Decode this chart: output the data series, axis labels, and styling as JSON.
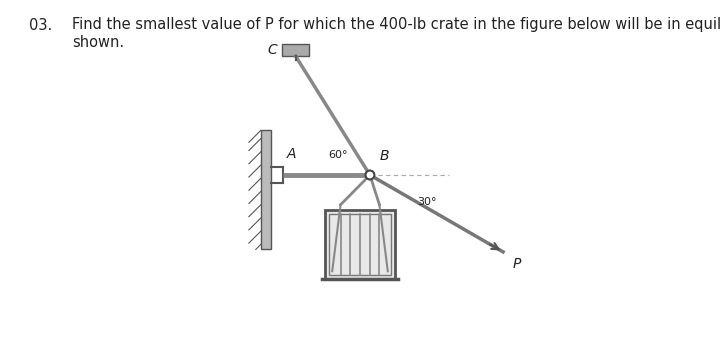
{
  "title_num": "03.",
  "title_text": "Find the smallest value of P for which the 400-lb crate in the figure below will be in equilibrium in the position\nshown.",
  "title_fontsize": 10.5,
  "bg_color": "#ffffff",
  "label_C": "C",
  "label_A": "A",
  "label_B": "B",
  "label_60": "60°",
  "label_30": "30°",
  "label_P": "P",
  "line_color": "#666666"
}
